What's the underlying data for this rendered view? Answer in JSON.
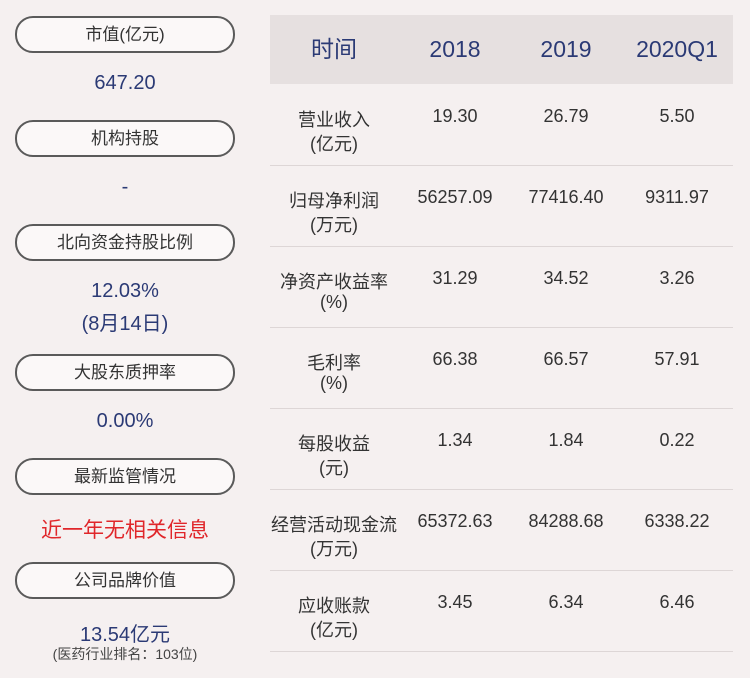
{
  "summary": [
    {
      "label": "市值(亿元)",
      "values": [
        "647.20"
      ]
    },
    {
      "label": "机构持股",
      "values": [
        "-"
      ]
    },
    {
      "label": "北向资金持股比例",
      "values": [
        "12.03%",
        "(8月14日)"
      ]
    },
    {
      "label": "大股东质押率",
      "values": [
        "0.00%"
      ]
    },
    {
      "label": "最新监管情况",
      "values": [
        "近一年无相关信息"
      ],
      "alert": true
    },
    {
      "label": "公司品牌价值",
      "values": [
        "13.54亿元"
      ],
      "note": "(医药行业排名：103位)"
    }
  ],
  "table": {
    "header": [
      "时间",
      "2018",
      "2019",
      "2020Q1"
    ],
    "rows": [
      {
        "label": [
          "营业收入",
          "(亿元)"
        ],
        "values": [
          "19.30",
          "26.79",
          "5.50"
        ]
      },
      {
        "label": [
          "归母净利润",
          "(万元)"
        ],
        "values": [
          "56257.09",
          "77416.40",
          "9311.97"
        ]
      },
      {
        "label": [
          "净资产收益率",
          "(%)"
        ],
        "values": [
          "31.29",
          "34.52",
          "3.26"
        ]
      },
      {
        "label": [
          "毛利率",
          "(%)"
        ],
        "values": [
          "66.38",
          "66.57",
          "57.91"
        ]
      },
      {
        "label": [
          "每股收益",
          "(元)"
        ],
        "values": [
          "1.34",
          "1.84",
          "0.22"
        ]
      },
      {
        "label": [
          "经营活动现金流",
          "(万元)"
        ],
        "values": [
          "65372.63",
          "84288.68",
          "6338.22"
        ]
      },
      {
        "label": [
          "应收账款",
          "(亿元)"
        ],
        "values": [
          "3.45",
          "6.34",
          "6.46"
        ]
      }
    ]
  }
}
